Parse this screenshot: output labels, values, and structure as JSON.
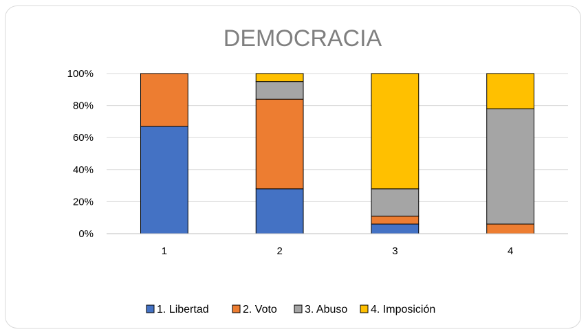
{
  "chart_data": {
    "type": "bar",
    "stacked": "percent",
    "title": "DEMOCRACIA",
    "categories": [
      "1",
      "2",
      "3",
      "4"
    ],
    "y_ticks": [
      "0%",
      "20%",
      "40%",
      "60%",
      "80%",
      "100%"
    ],
    "ylim": [
      0,
      100
    ],
    "grid": true,
    "legend_position": "bottom",
    "series": [
      {
        "name": "1. Libertad",
        "color": "#4472C4",
        "values": [
          67,
          28,
          6,
          0
        ]
      },
      {
        "name": "2. Voto",
        "color": "#ED7D31",
        "values": [
          33,
          56,
          5,
          6
        ]
      },
      {
        "name": "3. Abuso",
        "color": "#A5A5A5",
        "values": [
          0,
          11,
          17,
          72
        ]
      },
      {
        "name": "4. Imposición",
        "color": "#FFC000",
        "values": [
          0,
          5,
          72,
          22
        ]
      }
    ]
  }
}
